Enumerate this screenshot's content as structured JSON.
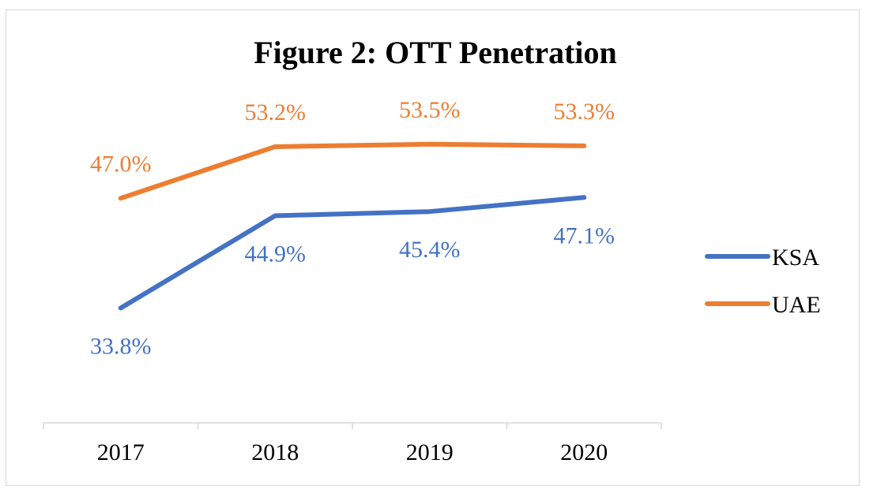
{
  "chart_data": {
    "type": "line",
    "title": "Figure 2: OTT Penetration",
    "xlabel": "",
    "ylabel": "",
    "categories": [
      "2017",
      "2018",
      "2019",
      "2020"
    ],
    "ylim": [
      20,
      60
    ],
    "grid": false,
    "legend_position": "right",
    "series": [
      {
        "name": "KSA",
        "color": "#4472c4",
        "values": [
          33.8,
          44.9,
          45.4,
          47.1
        ],
        "labels": [
          "33.8%",
          "44.9%",
          "45.4%",
          "47.1%"
        ],
        "label_position": [
          "below",
          "below",
          "below",
          "below"
        ]
      },
      {
        "name": "UAE",
        "color": "#ed7d31",
        "values": [
          47.0,
          53.2,
          53.5,
          53.3
        ],
        "labels": [
          "47.0%",
          "53.2%",
          "53.5%",
          "53.3%"
        ],
        "label_position": [
          "above",
          "above",
          "above",
          "above"
        ]
      }
    ]
  }
}
